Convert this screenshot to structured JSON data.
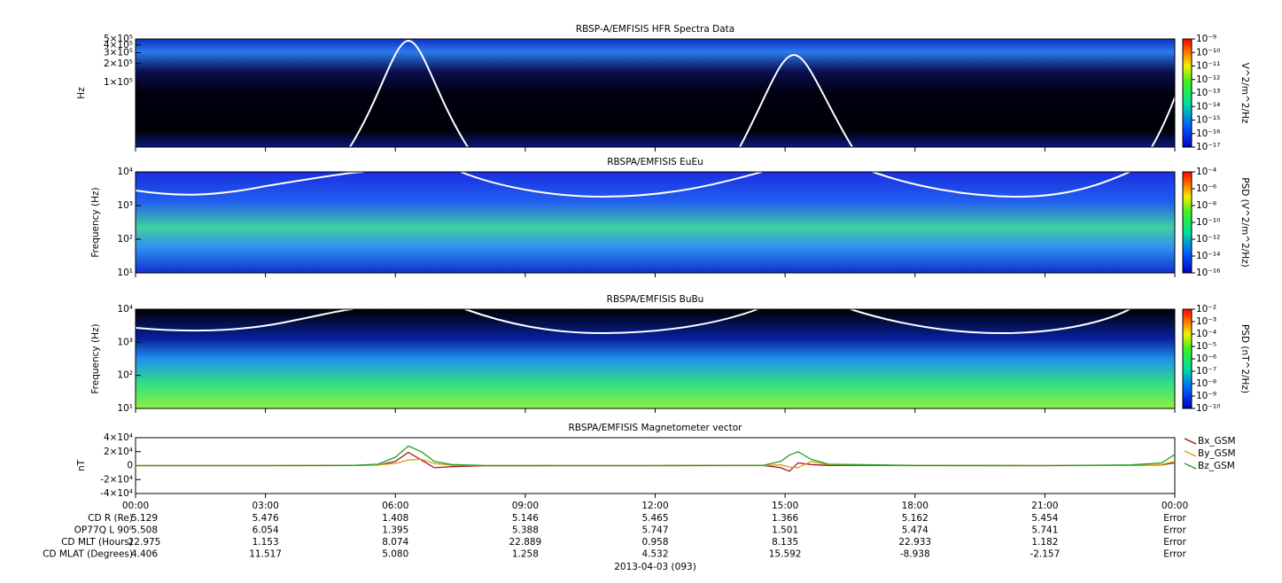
{
  "chart_data": [
    {
      "type": "spectrogram",
      "title": "RBSP-A/EMFISIS  HFR Spectra Data",
      "ylabel": "Hz",
      "log": true,
      "ylim": [
        9000,
        500000
      ],
      "yticks": [
        {
          "value": 500000,
          "label": "5×10⁵"
        },
        {
          "value": 400000,
          "label": "4×10⁵"
        },
        {
          "value": 300000,
          "label": "3×10⁵"
        },
        {
          "value": 200000,
          "label": "2×10⁵"
        },
        {
          "value": 100000,
          "label": "1×10⁵"
        }
      ],
      "zlabel": "V^2/m^2/Hz",
      "zlim": [
        1e-17,
        1e-09
      ],
      "zticks": [
        {
          "value": 1e-09,
          "label": "10⁻⁹"
        },
        {
          "value": 1e-10,
          "label": "10⁻¹⁰"
        },
        {
          "value": 1e-11,
          "label": "10⁻¹¹"
        },
        {
          "value": 1e-12,
          "label": "10⁻¹²"
        },
        {
          "value": 1e-13,
          "label": "10⁻¹³"
        },
        {
          "value": 1e-14,
          "label": "10⁻¹⁴"
        },
        {
          "value": 1e-15,
          "label": "10⁻¹⁵"
        },
        {
          "value": 1e-16,
          "label": "10⁻¹⁶"
        },
        {
          "value": 1e-17,
          "label": "10⁻¹⁷"
        }
      ]
    },
    {
      "type": "spectrogram",
      "title": "RBSPA/EMFISIS  EuEu",
      "ylabel": "Frequency (Hz)",
      "log": true,
      "ylim": [
        10,
        10000
      ],
      "yticks": [
        {
          "value": 10,
          "label": "10¹"
        },
        {
          "value": 100,
          "label": "10²"
        },
        {
          "value": 1000,
          "label": "10³"
        },
        {
          "value": 10000,
          "label": "10⁴"
        }
      ],
      "zlabel": "PSD (V^2/m^2/Hz)",
      "zlim": [
        1e-16,
        0.0001
      ],
      "zticks": [
        {
          "value": 0.0001,
          "label": "10⁻⁴"
        },
        {
          "value": 1e-06,
          "label": "10⁻⁶"
        },
        {
          "value": 1e-08,
          "label": "10⁻⁸"
        },
        {
          "value": 1e-10,
          "label": "10⁻¹⁰"
        },
        {
          "value": 1e-12,
          "label": "10⁻¹²"
        },
        {
          "value": 1e-14,
          "label": "10⁻¹⁴"
        },
        {
          "value": 1e-16,
          "label": "10⁻¹⁶"
        }
      ]
    },
    {
      "type": "spectrogram",
      "title": "RBSPA/EMFISIS  BuBu",
      "ylabel": "Frequency (Hz)",
      "log": true,
      "ylim": [
        10,
        10000
      ],
      "yticks": [
        {
          "value": 10,
          "label": "10¹"
        },
        {
          "value": 100,
          "label": "10²"
        },
        {
          "value": 1000,
          "label": "10³"
        },
        {
          "value": 10000,
          "label": "10⁴"
        }
      ],
      "zlabel": "PSD (nT^2/Hz)",
      "zlim": [
        1e-10,
        0.01
      ],
      "zticks": [
        {
          "value": 0.01,
          "label": "10⁻²"
        },
        {
          "value": 0.001,
          "label": "10⁻³"
        },
        {
          "value": 0.0001,
          "label": "10⁻⁴"
        },
        {
          "value": 1e-05,
          "label": "10⁻⁵"
        },
        {
          "value": 1e-06,
          "label": "10⁻⁶"
        },
        {
          "value": 1e-07,
          "label": "10⁻⁷"
        },
        {
          "value": 1e-08,
          "label": "10⁻⁸"
        },
        {
          "value": 1e-09,
          "label": "10⁻⁹"
        },
        {
          "value": 1e-10,
          "label": "10⁻¹⁰"
        }
      ]
    },
    {
      "type": "line",
      "title": "RBSPA/EMFISIS  Magnetometer vector",
      "ylabel": "nT",
      "ylim": [
        -40000,
        40000
      ],
      "yticks": [
        {
          "value": 40000,
          "label": "4×10⁴"
        },
        {
          "value": 20000,
          "label": "2×10⁴"
        },
        0,
        {
          "value": -20000,
          "label": "-2×10⁴"
        },
        {
          "value": -40000,
          "label": "-4×10⁴"
        }
      ],
      "xlim": [
        0,
        24
      ],
      "xticks": [
        {
          "value": 0,
          "label": "00:00"
        },
        {
          "value": 3,
          "label": "03:00"
        },
        {
          "value": 6,
          "label": "06:00"
        },
        {
          "value": 9,
          "label": "09:00"
        },
        {
          "value": 12,
          "label": "12:00"
        },
        {
          "value": 15,
          "label": "15:00"
        },
        {
          "value": 18,
          "label": "18:00"
        },
        {
          "value": 21,
          "label": "21:00"
        },
        {
          "value": 24,
          "label": "00:00"
        }
      ],
      "x": [
        0,
        3,
        5,
        5.6,
        6.0,
        6.3,
        6.6,
        6.9,
        7.3,
        8,
        12,
        14.5,
        14.9,
        15.1,
        15.3,
        15.6,
        16,
        18,
        21,
        23,
        23.7,
        24
      ],
      "series": [
        {
          "name": "Bx_GSM",
          "color": "#a01818",
          "values": [
            0,
            0,
            100,
            800,
            6000,
            19000,
            8000,
            -3000,
            -1500,
            -300,
            0,
            200,
            -3000,
            -8000,
            4000,
            1500,
            200,
            0,
            0,
            200,
            1000,
            4000
          ]
        },
        {
          "name": "By_GSM",
          "color": "#d4a017",
          "values": [
            0,
            0,
            200,
            1000,
            3000,
            8000,
            9000,
            3000,
            500,
            0,
            0,
            200,
            1000,
            -2000,
            -3000,
            6000,
            1500,
            0,
            0,
            300,
            1500,
            6000
          ]
        },
        {
          "name": "Bz_GSM",
          "color": "#22a022",
          "values": [
            0,
            0,
            300,
            2000,
            12000,
            28000,
            20000,
            6000,
            1500,
            200,
            0,
            500,
            6000,
            15000,
            20000,
            9000,
            2000,
            200,
            0,
            1000,
            4000,
            16000
          ]
        }
      ]
    }
  ],
  "ephemeris": {
    "labels": [
      "CD R (Re)",
      "OP77Q L 90⁰",
      "CD MLT (Hours)",
      "CD MLAT (Degrees)"
    ],
    "rows": [
      [
        "5.129",
        "5.476",
        "1.408",
        "5.146",
        "5.465",
        "1.366",
        "5.162",
        "5.454",
        "Error"
      ],
      [
        "5.508",
        "6.054",
        "1.395",
        "5.388",
        "5.747",
        "1.501",
        "5.474",
        "5.741",
        "Error"
      ],
      [
        "22.975",
        "1.153",
        "8.074",
        "22.889",
        "0.958",
        "8.135",
        "22.933",
        "1.182",
        "Error"
      ],
      [
        "4.406",
        "11.517",
        "5.080",
        "1.258",
        "4.532",
        "15.592",
        "-8.938",
        "-2.157",
        "Error"
      ]
    ]
  },
  "date": "2013-04-03 (093)"
}
